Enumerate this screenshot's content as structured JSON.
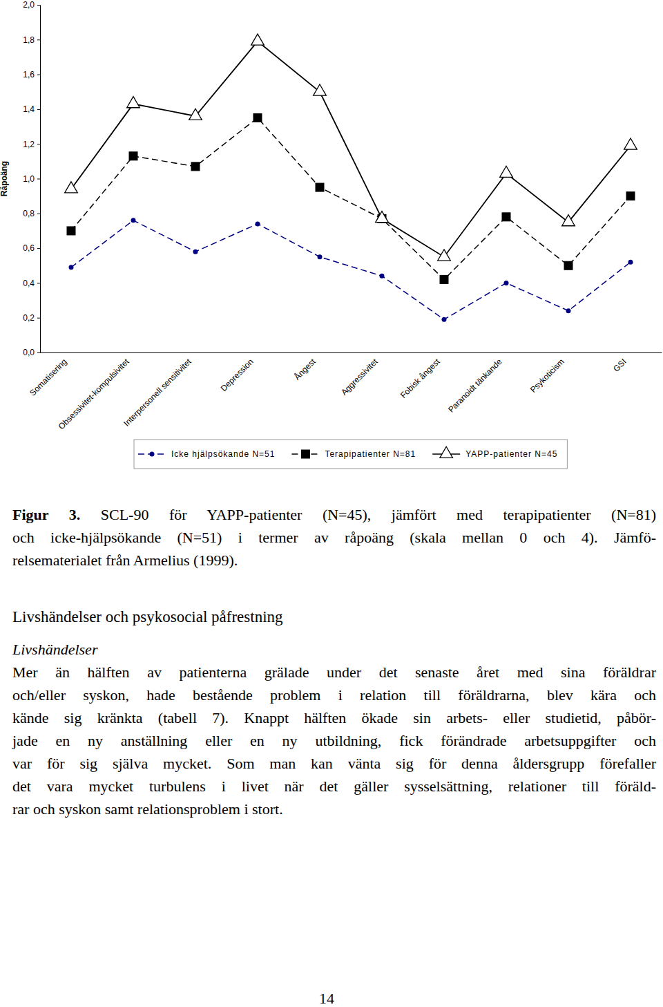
{
  "chart_data": {
    "type": "line",
    "y_label": "Råpoäng",
    "categories": [
      "Somatisering",
      "Obsessivitet-kompulsivitet",
      "Interpersonell sensitivitet",
      "Depression",
      "Ångest",
      "Aggressivitet",
      "Fobisk ångest",
      "Paranoidt tänkande",
      "Psykoticism",
      "GSI"
    ],
    "series": [
      {
        "name": "Icke hjälpsökande N=51",
        "color": "#000080",
        "marker": "circle",
        "line_style": "dashed",
        "values": [
          0.49,
          0.76,
          0.58,
          0.74,
          0.55,
          0.44,
          0.19,
          0.4,
          0.24,
          0.52
        ]
      },
      {
        "name": "Terapipatienter N=81",
        "color": "#000000",
        "marker": "square",
        "line_style": "dashed",
        "values": [
          0.7,
          1.13,
          1.07,
          1.35,
          0.95,
          0.77,
          0.42,
          0.78,
          0.5,
          0.9
        ]
      },
      {
        "name": "YAPP-patienter N=45",
        "color": "#000000",
        "marker": "triangle",
        "line_style": "solid",
        "values": [
          0.94,
          1.43,
          1.36,
          1.79,
          1.5,
          0.77,
          0.55,
          1.03,
          0.75,
          1.19
        ]
      }
    ],
    "ylim": [
      0,
      2
    ],
    "yticks": [
      {
        "value": 0,
        "label": "0,0"
      },
      {
        "value": 0.2,
        "label": "0,2"
      },
      {
        "value": 0.4,
        "label": "0,4"
      },
      {
        "value": 0.6,
        "label": "0,6"
      },
      {
        "value": 0.8,
        "label": "0,8"
      },
      {
        "value": 1,
        "label": "1,0"
      },
      {
        "value": 1.2,
        "label": "1,2"
      },
      {
        "value": 1.4,
        "label": "1,4"
      },
      {
        "value": 1.6,
        "label": "1,6"
      },
      {
        "value": 1.8,
        "label": "1,8"
      },
      {
        "value": 2,
        "label": "2,0"
      }
    ],
    "grid": false,
    "legend": "bottom"
  },
  "document": {
    "caption": {
      "label": "Figur 3.",
      "lines": [
        "SCL-90 för YAPP-patienter (N=45), jämfört med terapipatienter (N=81)",
        "och icke-hjälpsökande (N=51) i termer av råpoäng (skala mellan 0 och 4). Jämfö-",
        "relsematerialet från Armelius (1999)."
      ]
    },
    "heading": "Livshändelser och psykosocial påfrestning",
    "subheading": "Livshändelser",
    "paragraph": [
      "Mer än hälften av patienterna grälade under det senaste året med sina föräldrar",
      "och/eller syskon, hade bestående problem i relation till föräldrarna, blev kära och",
      "kände sig kränkta (tabell 7). Knappt hälften ökade sin arbets- eller studietid, påbör-",
      "jade en ny anställning eller en ny utbildning, fick förändrade arbetsuppgifter och",
      "var för sig själva mycket. Som man kan vänta sig för denna åldersgrupp förefaller",
      "det vara mycket turbulens i livet när det gäller sysselsättning, relationer till föräld-",
      "rar och syskon samt relationsproblem i stort."
    ],
    "page_number": "14"
  }
}
